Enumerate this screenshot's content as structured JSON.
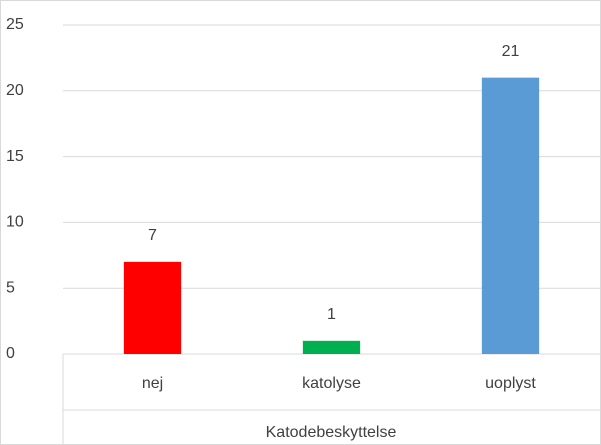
{
  "chart_data": {
    "type": "bar",
    "categories": [
      "nej",
      "katolyse",
      "uoplyst"
    ],
    "values": [
      7,
      1,
      21
    ],
    "colors": [
      "#ff0000",
      "#00b050",
      "#5b9bd5"
    ],
    "x_label": "Katodebeskyttelse",
    "ylim": [
      0,
      25
    ],
    "yticks": [
      0,
      5,
      10,
      15,
      20,
      25
    ],
    "grid": true
  }
}
